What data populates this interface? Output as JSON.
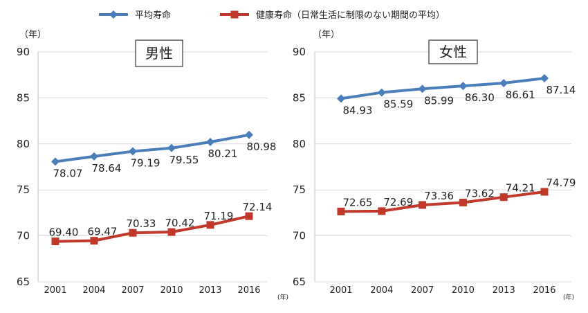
{
  "legend": {
    "items": [
      {
        "label": "平均寿命",
        "color": "#4a7ebb",
        "marker": "diamond"
      },
      {
        "label": "健康寿命（日常生活に制限のない期間の平均）",
        "color": "#c0392b",
        "marker": "square"
      }
    ]
  },
  "chart_data": [
    {
      "type": "line",
      "title": "男性",
      "y_unit": "（年）",
      "x_unit": "(年)",
      "ylim": [
        65,
        90
      ],
      "yticks": [
        "65",
        "70",
        "75",
        "80",
        "85",
        "90"
      ],
      "grid": true,
      "categories": [
        "2001",
        "2004",
        "2007",
        "2010",
        "2013",
        "2016"
      ],
      "series": [
        {
          "name": "平均寿命",
          "color": "#4a7ebb",
          "marker": "diamond",
          "values": [
            78.07,
            78.64,
            79.19,
            79.55,
            80.21,
            80.98
          ],
          "labels": [
            "78.07",
            "78.64",
            "79.19",
            "79.55",
            "80.21",
            "80.98"
          ]
        },
        {
          "name": "健康寿命（日常生活に制限のない期間の平均）",
          "color": "#c0392b",
          "marker": "square",
          "values": [
            69.4,
            69.47,
            70.33,
            70.42,
            71.19,
            72.14
          ],
          "labels": [
            "69.40",
            "69.47",
            "70.33",
            "70.42",
            "71.19",
            "72.14"
          ]
        }
      ]
    },
    {
      "type": "line",
      "title": "女性",
      "y_unit": "（年）",
      "x_unit": "(年)",
      "ylim": [
        65,
        90
      ],
      "yticks": [
        "65",
        "70",
        "75",
        "80",
        "85",
        "90"
      ],
      "grid": true,
      "categories": [
        "2001",
        "2004",
        "2007",
        "2010",
        "2013",
        "2016"
      ],
      "series": [
        {
          "name": "平均寿命",
          "color": "#4a7ebb",
          "marker": "diamond",
          "values": [
            84.93,
            85.59,
            85.99,
            86.3,
            86.61,
            87.14
          ],
          "labels": [
            "84.93",
            "85.59",
            "85.99",
            "86.30",
            "86.61",
            "87.14"
          ]
        },
        {
          "name": "健康寿命（日常生活に制限のない期間の平均）",
          "color": "#c0392b",
          "marker": "square",
          "values": [
            72.65,
            72.69,
            73.36,
            73.62,
            74.21,
            74.79
          ],
          "labels": [
            "72.65",
            "72.69",
            "73.36",
            "73.62",
            "74.21",
            "74.79"
          ]
        }
      ]
    }
  ]
}
